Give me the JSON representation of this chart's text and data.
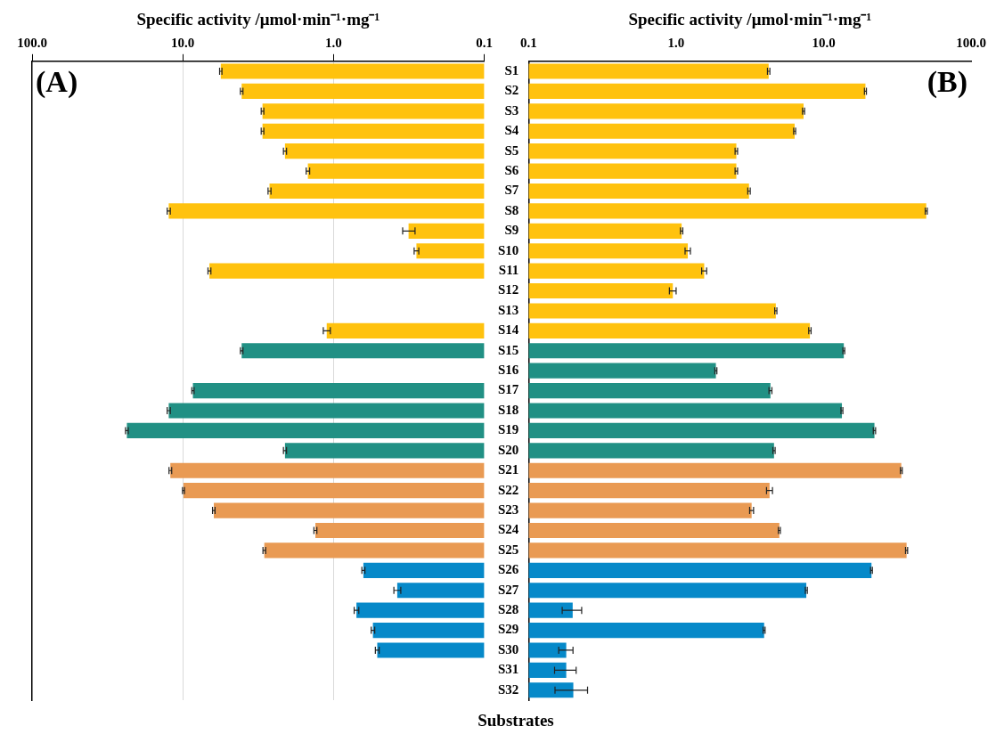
{
  "chart_data": [
    {
      "type": "bar",
      "orientation": "horizontal",
      "log": "x",
      "xlabel": "Specific activity /μmol·min⁻¹·mg⁻¹",
      "xlim": [
        100,
        0.1
      ],
      "xticks": [
        {
          "value": 100,
          "label": "100.0"
        },
        {
          "value": 10,
          "label": "10.0"
        },
        {
          "value": 1,
          "label": "1.0"
        },
        0.1
      ],
      "grid": "x",
      "annotations": [
        "(A)"
      ],
      "categories": [
        null,
        null,
        null,
        null,
        null,
        null,
        null,
        null,
        null,
        null,
        null,
        null,
        null,
        null,
        null,
        null,
        null,
        null,
        null,
        null,
        null,
        null,
        null,
        null,
        null,
        null,
        null,
        null,
        null,
        null,
        null,
        null
      ],
      "values": [
        5.6,
        4.07,
        2.96,
        2.96,
        2.1,
        1.48,
        2.66,
        12.4,
        0.318,
        0.282,
        6.66,
        null,
        null,
        1.11,
        4.07,
        null,
        8.57,
        12.4,
        23.5,
        2.1,
        12.1,
        9.9,
        6.23,
        1.32,
        2.88,
        0.634,
        0.378,
        0.705,
        0.548,
        0.513,
        null,
        null
      ],
      "errors": [
        0.1,
        0.08,
        0.06,
        0.06,
        0.05,
        0.04,
        0.06,
        0.3,
        0.03,
        0.01,
        0.15,
        null,
        null,
        0.06,
        0.08,
        null,
        0.15,
        0.3,
        0.5,
        0.05,
        0.25,
        0.15,
        0.12,
        0.03,
        0.06,
        0.015,
        0.02,
        0.025,
        0.015,
        0.015,
        null,
        null
      ],
      "colors": [
        "#ffc20e",
        "#ffc20e",
        "#ffc20e",
        "#ffc20e",
        "#ffc20e",
        "#ffc20e",
        "#ffc20e",
        "#ffc20e",
        "#ffc20e",
        "#ffc20e",
        "#ffc20e",
        "#ffc20e",
        "#ffc20e",
        "#ffc20e",
        "#219084",
        "#219084",
        "#219084",
        "#219084",
        "#219084",
        "#219084",
        "#e99a53",
        "#e99a53",
        "#e99a53",
        "#e99a53",
        "#e99a53",
        "#0689c9",
        "#0689c9",
        "#0689c9",
        "#0689c9",
        "#0689c9",
        "#0689c9",
        "#0689c9"
      ]
    },
    {
      "type": "bar",
      "orientation": "horizontal",
      "log": "x",
      "xlabel": "Specific activity /μmol·min⁻¹·mg⁻¹",
      "ylabel": "Substrates",
      "xlim": [
        0.1,
        100
      ],
      "xticks": [
        0.1,
        {
          "value": 1,
          "label": "1.0"
        },
        {
          "value": 10,
          "label": "10.0"
        },
        {
          "value": 100,
          "label": "100.0"
        }
      ],
      "annotations": [
        "(B)"
      ],
      "categories": [
        "S1",
        "S2",
        "S3",
        "S4",
        "S5",
        "S6",
        "S7",
        "S8",
        "S9",
        "S10",
        "S11",
        "S12",
        "S13",
        "S14",
        "S15",
        "S16",
        "S17",
        "S18",
        "S19",
        "S20",
        "S21",
        "S22",
        "S23",
        "S24",
        "S25",
        "S26",
        "S27",
        "S28",
        "S29",
        "S30",
        "S31",
        "S32"
      ],
      "values": [
        4.24,
        19.2,
        7.31,
        6.36,
        2.56,
        2.56,
        3.12,
        49.6,
        1.09,
        1.2,
        1.55,
        0.95,
        4.74,
        8.07,
        13.7,
        1.86,
        4.36,
        13.3,
        22.1,
        4.61,
        33.6,
        4.3,
        3.25,
        5.01,
        36.5,
        21.1,
        7.63,
        0.199,
        3.95,
        0.18,
        0.18,
        0.201
      ],
      "errors": [
        0.08,
        0.3,
        0.12,
        0.1,
        0.05,
        0.05,
        0.06,
        0.8,
        0.02,
        0.05,
        0.06,
        0.05,
        0.08,
        0.15,
        0.2,
        0.03,
        0.1,
        0.2,
        0.4,
        0.08,
        0.5,
        0.2,
        0.1,
        0.08,
        0.6,
        0.3,
        0.12,
        0.03,
        0.06,
        0.02,
        0.03,
        0.05
      ],
      "colors": [
        "#ffc20e",
        "#ffc20e",
        "#ffc20e",
        "#ffc20e",
        "#ffc20e",
        "#ffc20e",
        "#ffc20e",
        "#ffc20e",
        "#ffc20e",
        "#ffc20e",
        "#ffc20e",
        "#ffc20e",
        "#ffc20e",
        "#ffc20e",
        "#219084",
        "#219084",
        "#219084",
        "#219084",
        "#219084",
        "#219084",
        "#e99a53",
        "#e99a53",
        "#e99a53",
        "#e99a53",
        "#e99a53",
        "#0689c9",
        "#0689c9",
        "#0689c9",
        "#0689c9",
        "#0689c9",
        "#0689c9",
        "#0689c9"
      ]
    }
  ]
}
